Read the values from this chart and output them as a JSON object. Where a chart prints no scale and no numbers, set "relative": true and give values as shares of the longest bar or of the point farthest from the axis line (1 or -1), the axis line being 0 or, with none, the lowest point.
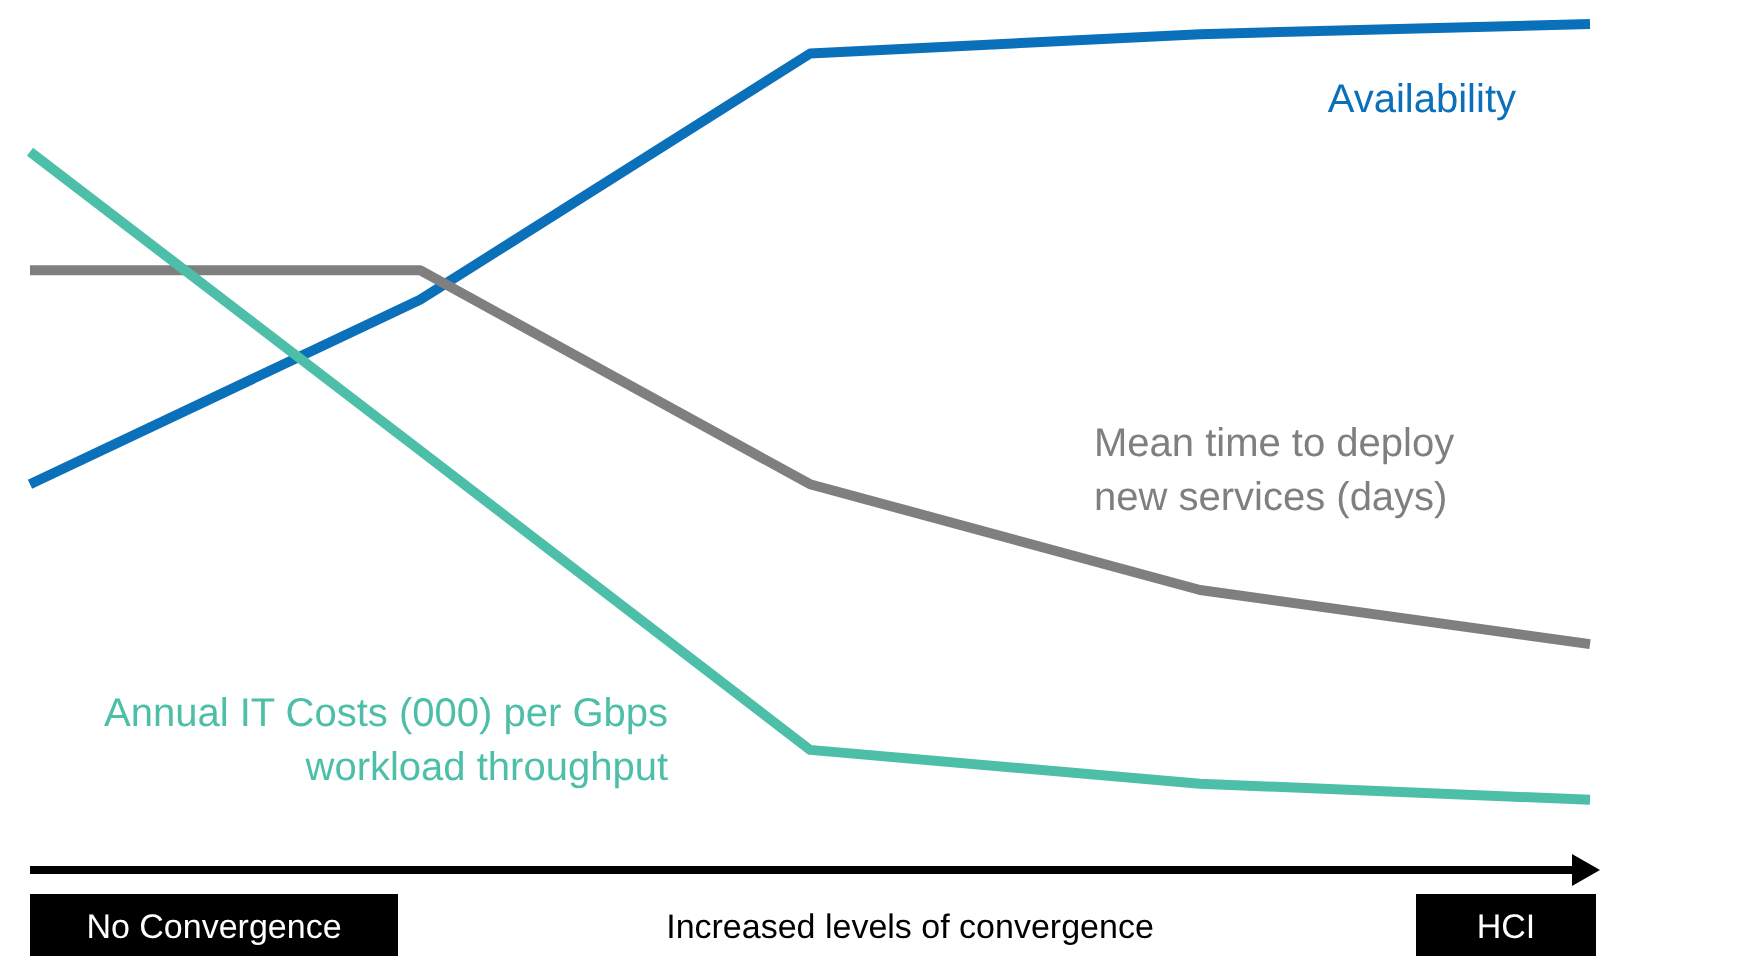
{
  "chart_data": {
    "type": "line",
    "relative": true,
    "xlabel": "Increased levels of convergence",
    "categories": [
      null,
      null,
      null,
      null,
      null
    ],
    "annotations": [
      "No Convergence",
      "HCI"
    ],
    "legend": false,
    "marker": "none",
    "line_style": "solid",
    "series": [
      {
        "name": "Availability",
        "color": "#0b70ba",
        "values": [
          0.456,
          0.674,
          0.965,
          0.988,
          1
        ]
      },
      {
        "name": "Mean time to deploy new services (days)",
        "color": "#7f7f7f",
        "values": [
          0.709,
          0.709,
          0.456,
          0.331,
          0.267
        ]
      },
      {
        "name": "Annual IT Costs (000) per Gbps workload throughput",
        "color": "#4dbfa8",
        "values": [
          0.849,
          0.496,
          0.142,
          0.102,
          0.083
        ]
      }
    ]
  }
}
